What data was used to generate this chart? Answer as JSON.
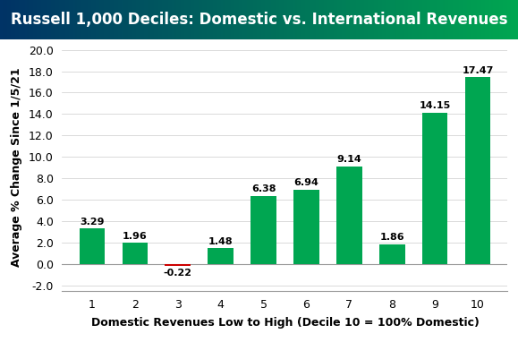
{
  "title": "Russell 1,000 Deciles: Domestic vs. International Revenues",
  "xlabel": "Domestic Revenues Low to High (Decile 10 = 100% Domestic)",
  "ylabel": "Average % Change Since 1/5/21",
  "categories": [
    1,
    2,
    3,
    4,
    5,
    6,
    7,
    8,
    9,
    10
  ],
  "values": [
    3.29,
    1.96,
    -0.22,
    1.48,
    6.38,
    6.94,
    9.14,
    1.86,
    14.15,
    17.47
  ],
  "bar_colors": [
    "#00a651",
    "#00a651",
    "#cc0000",
    "#00a651",
    "#00a651",
    "#00a651",
    "#00a651",
    "#00a651",
    "#00a651",
    "#00a651"
  ],
  "ylim": [
    -2.5,
    20.5
  ],
  "yticks": [
    -2.0,
    0.0,
    2.0,
    4.0,
    6.0,
    8.0,
    10.0,
    12.0,
    14.0,
    16.0,
    18.0,
    20.0
  ],
  "title_color_left": "#003366",
  "title_color_right": "#00a651",
  "title_text_color": "#ffffff",
  "title_fontsize": 12,
  "axis_label_fontsize": 9,
  "tick_fontsize": 9,
  "value_fontsize": 8,
  "background_color": "#ffffff"
}
